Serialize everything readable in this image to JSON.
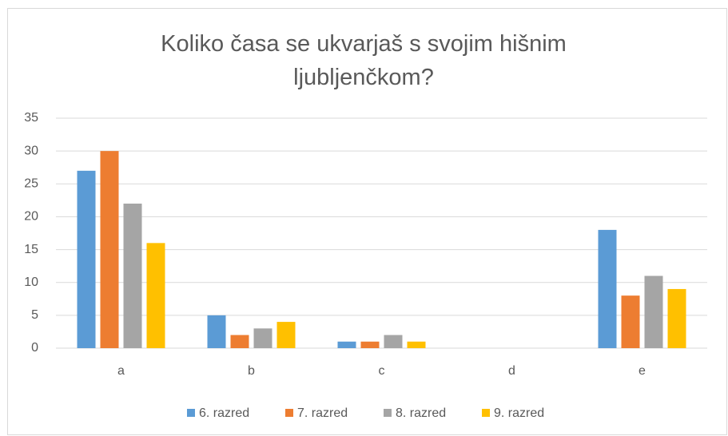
{
  "chart_data": {
    "type": "bar",
    "title": "Koliko časa se ukvarjaš s svojim hišnim ljubljenčkom?",
    "categories": [
      "a",
      "b",
      "c",
      "d",
      "e"
    ],
    "series": [
      {
        "name": "6. razred",
        "color": "#5b9bd5",
        "values": [
          27,
          5,
          1,
          0,
          18
        ]
      },
      {
        "name": "7. razred",
        "color": "#ed7d31",
        "values": [
          30,
          2,
          1,
          0,
          8
        ]
      },
      {
        "name": "8. razred",
        "color": "#a5a5a5",
        "values": [
          22,
          3,
          2,
          0,
          11
        ]
      },
      {
        "name": "9. razred",
        "color": "#ffc000",
        "values": [
          16,
          4,
          1,
          0,
          9
        ]
      }
    ],
    "ylim": [
      0,
      35
    ],
    "yticks": [
      0,
      5,
      10,
      15,
      20,
      25,
      30,
      35
    ],
    "grid": true,
    "legend": "bottom"
  }
}
